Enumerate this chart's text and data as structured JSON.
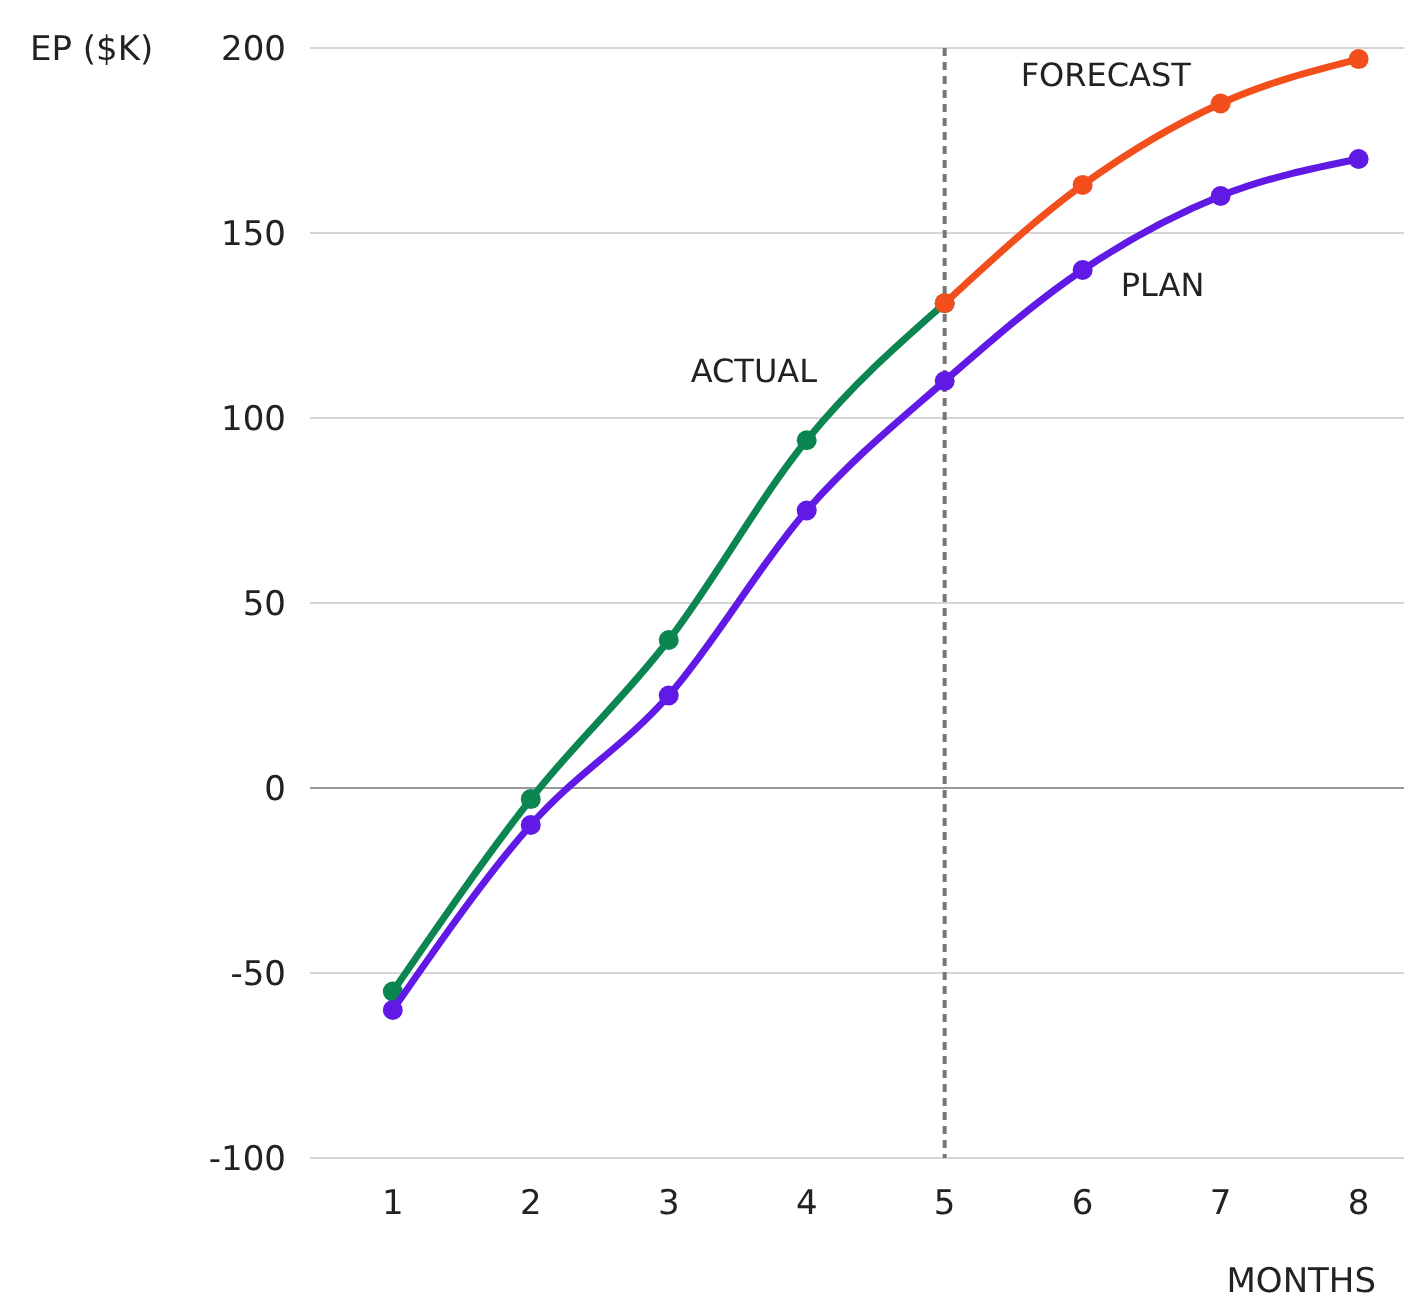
{
  "chart_data": {
    "type": "line",
    "xlabel": "MONTHS",
    "ylabel": "EP ($K)",
    "xlim": [
      0.4,
      8.3
    ],
    "xticks": [
      1,
      2,
      3,
      4,
      5,
      6,
      7,
      8
    ],
    "ylim": [
      -100,
      200
    ],
    "yticks": [
      -100,
      -50,
      0,
      50,
      100,
      150,
      200
    ],
    "grid": "y",
    "marker": "circle",
    "line_style": "solid",
    "series": [
      {
        "name": "ACTUAL",
        "color": "#0b8650",
        "x": [
          1,
          2,
          3,
          4,
          5
        ],
        "values": [
          -55,
          -3,
          40,
          94,
          131
        ]
      },
      {
        "name": "FORECAST",
        "color": "#f24f1c",
        "x": [
          5,
          6,
          7,
          8
        ],
        "values": [
          131,
          163,
          185,
          197
        ]
      },
      {
        "name": "PLAN",
        "color": "#6119e6",
        "x": [
          1,
          2,
          3,
          4,
          5,
          6,
          7,
          8
        ],
        "values": [
          -60,
          -10,
          25,
          75,
          110,
          140,
          160,
          170
        ]
      }
    ],
    "ref_lines": [
      {
        "axis": "x",
        "value": 5,
        "color": "#777777",
        "line_style": "dashed"
      }
    ]
  }
}
